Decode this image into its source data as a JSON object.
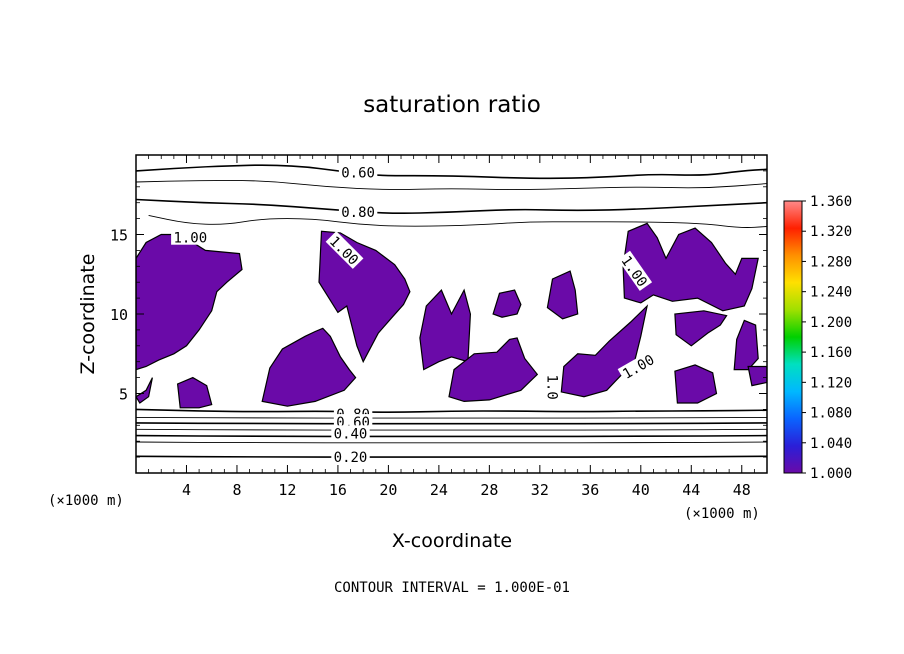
{
  "chart_data": {
    "type": "heatmap",
    "title": "saturation ratio",
    "xlabel": "X-coordinate",
    "ylabel": "Z-coordinate",
    "x_unit": "(×1000 m)",
    "y_unit": "(×1000 m)",
    "xlim": [
      0,
      50
    ],
    "ylim": [
      0,
      20
    ],
    "x_ticks": [
      4,
      8,
      12,
      16,
      20,
      24,
      28,
      32,
      36,
      40,
      44,
      48
    ],
    "y_ticks": [
      5,
      10,
      15
    ],
    "colorbar": {
      "ticks": [
        "1.000",
        "1.040",
        "1.080",
        "1.120",
        "1.160",
        "1.200",
        "1.240",
        "1.280",
        "1.320",
        "1.360"
      ],
      "colors": [
        "#6a0aa8",
        "#2a1fd8",
        "#0a64ff",
        "#00b8ff",
        "#00e0c0",
        "#00d000",
        "#a0e000",
        "#ffe000",
        "#ff9000",
        "#ff2000",
        "#ff8a8a"
      ]
    },
    "contour_labels": [
      {
        "text": "0.60",
        "x": 17.6,
        "z": 18.9
      },
      {
        "text": "0.80",
        "x": 17.6,
        "z": 16.4
      },
      {
        "text": "1.00",
        "x": 4.3,
        "z": 14.8
      },
      {
        "text": "1.00",
        "x": 16.5,
        "z": 14.0,
        "rot": 45
      },
      {
        "text": "1.00",
        "x": 39.5,
        "z": 12.7,
        "rot": 55
      },
      {
        "text": "1.00",
        "x": 39.8,
        "z": 6.7,
        "rot": -30
      },
      {
        "text": "1.0",
        "x": 33.0,
        "z": 5.4,
        "rot": 90
      },
      {
        "text": "0.80",
        "x": 17.2,
        "z": 3.7
      },
      {
        "text": "0.60",
        "x": 17.2,
        "z": 3.2
      },
      {
        "text": "0.40",
        "x": 17.0,
        "z": 2.5
      },
      {
        "text": "0.20",
        "x": 17.0,
        "z": 1.0
      }
    ],
    "saturated_regions": [
      [
        [
          0,
          6.5
        ],
        [
          0,
          13.5
        ],
        [
          0.8,
          14.5
        ],
        [
          2,
          15
        ],
        [
          3.5,
          15
        ],
        [
          5.5,
          14
        ],
        [
          8.2,
          13.8
        ],
        [
          8.4,
          12.8
        ],
        [
          7.2,
          12.0
        ],
        [
          6.4,
          11.4
        ],
        [
          6,
          10.2
        ],
        [
          5,
          9
        ],
        [
          4,
          8
        ],
        [
          3,
          7.5
        ],
        [
          1.8,
          7.1
        ],
        [
          0.8,
          6.7
        ]
      ],
      [
        [
          0,
          4.8
        ],
        [
          0.8,
          5.2
        ],
        [
          1.3,
          6.0
        ],
        [
          1.0,
          4.8
        ],
        [
          0.3,
          4.4
        ]
      ],
      [
        [
          3.5,
          4.1
        ],
        [
          3.3,
          5.6
        ],
        [
          4.5,
          6.0
        ],
        [
          5.6,
          5.5
        ],
        [
          6.0,
          4.3
        ],
        [
          5.0,
          4.1
        ]
      ],
      [
        [
          10.0,
          4.5
        ],
        [
          10.6,
          6.6
        ],
        [
          11.6,
          7.8
        ],
        [
          13.4,
          8.6
        ],
        [
          14.2,
          8.9
        ],
        [
          14.8,
          9.1
        ],
        [
          15.4,
          8.6
        ],
        [
          16.2,
          7.3
        ],
        [
          16.9,
          6.5
        ],
        [
          17.4,
          6.0
        ],
        [
          16.5,
          5.2
        ],
        [
          14.2,
          4.5
        ],
        [
          12.0,
          4.2
        ]
      ],
      [
        [
          14.7,
          15.2
        ],
        [
          14.5,
          12.0
        ],
        [
          16.0,
          10.1
        ],
        [
          16.7,
          10.5
        ],
        [
          17.5,
          8.0
        ],
        [
          18.0,
          7.0
        ],
        [
          19.2,
          8.8
        ],
        [
          20.3,
          9.8
        ],
        [
          21.2,
          10.6
        ],
        [
          21.7,
          11.4
        ],
        [
          21.3,
          12.2
        ],
        [
          20.5,
          13.1
        ],
        [
          19.0,
          14.0
        ],
        [
          17.5,
          14.5
        ],
        [
          16.2,
          15.1
        ]
      ],
      [
        [
          22.8,
          6.5
        ],
        [
          22.5,
          8.5
        ],
        [
          23.0,
          10.5
        ],
        [
          24.2,
          11.5
        ],
        [
          25.0,
          10.0
        ],
        [
          26.0,
          11.5
        ],
        [
          26.5,
          10.0
        ],
        [
          26.3,
          7.0
        ],
        [
          25.0,
          7.3
        ],
        [
          24.0,
          7.0
        ]
      ],
      [
        [
          24.8,
          4.8
        ],
        [
          25.2,
          6.5
        ],
        [
          26.8,
          7.5
        ],
        [
          28.6,
          7.6
        ],
        [
          29.6,
          8.4
        ],
        [
          30.2,
          8.5
        ],
        [
          30.8,
          7.2
        ],
        [
          31.8,
          6.2
        ],
        [
          30.5,
          5.2
        ],
        [
          28.0,
          4.6
        ],
        [
          26.0,
          4.5
        ]
      ],
      [
        [
          28.3,
          10.0
        ],
        [
          28.8,
          11.3
        ],
        [
          30.0,
          11.5
        ],
        [
          30.5,
          10.6
        ],
        [
          30.2,
          10.0
        ],
        [
          29.0,
          9.8
        ]
      ],
      [
        [
          32.6,
          10.4
        ],
        [
          33.0,
          12.2
        ],
        [
          34.4,
          12.7
        ],
        [
          34.8,
          11.5
        ],
        [
          35.0,
          10.0
        ],
        [
          33.8,
          9.7
        ]
      ],
      [
        [
          33.7,
          5.1
        ],
        [
          33.9,
          6.7
        ],
        [
          35.0,
          7.5
        ],
        [
          36.4,
          7.4
        ],
        [
          37.5,
          8.3
        ],
        [
          39.2,
          9.5
        ],
        [
          40.5,
          10.5
        ],
        [
          40.0,
          8.6
        ],
        [
          39.5,
          7.0
        ],
        [
          38.5,
          6.2
        ],
        [
          37.3,
          5.2
        ],
        [
          35.5,
          4.8
        ]
      ],
      [
        [
          38.7,
          11.0
        ],
        [
          38.6,
          13.0
        ],
        [
          39.0,
          15.2
        ],
        [
          40.5,
          15.7
        ],
        [
          41.3,
          14.8
        ],
        [
          42.0,
          13.5
        ],
        [
          43.0,
          15.0
        ],
        [
          44.3,
          15.4
        ],
        [
          45.6,
          14.5
        ],
        [
          46.7,
          13.2
        ],
        [
          47.5,
          12.5
        ],
        [
          48.0,
          13.5
        ],
        [
          49.3,
          13.5
        ],
        [
          48.8,
          11.6
        ],
        [
          48.2,
          10.5
        ],
        [
          46.5,
          10.2
        ],
        [
          44.5,
          11.0
        ],
        [
          42.5,
          10.8
        ],
        [
          41.0,
          11.2
        ],
        [
          40.0,
          10.7
        ]
      ],
      [
        [
          42.7,
          10.0
        ],
        [
          42.8,
          8.7
        ],
        [
          44.0,
          8.0
        ],
        [
          45.3,
          8.8
        ],
        [
          46.3,
          9.3
        ],
        [
          46.8,
          9.9
        ],
        [
          45.0,
          10.2
        ]
      ],
      [
        [
          47.4,
          6.5
        ],
        [
          47.6,
          8.4
        ],
        [
          48.2,
          9.6
        ],
        [
          49.1,
          9.3
        ],
        [
          49.3,
          7.2
        ],
        [
          48.5,
          6.5
        ]
      ],
      [
        [
          42.9,
          4.4
        ],
        [
          42.7,
          6.4
        ],
        [
          44.3,
          6.8
        ],
        [
          45.7,
          6.3
        ],
        [
          46.0,
          5.0
        ],
        [
          44.5,
          4.4
        ]
      ],
      [
        [
          48.5,
          6.7
        ],
        [
          48.8,
          6.7
        ],
        [
          50,
          6.7
        ],
        [
          50,
          5.7
        ],
        [
          48.8,
          5.5
        ]
      ]
    ],
    "contour_lines": [
      {
        "pts": [
          [
            0,
            19.0
          ],
          [
            6,
            19.3
          ],
          [
            12,
            19.4
          ],
          [
            17,
            18.9
          ],
          [
            19,
            18.7
          ],
          [
            25,
            18.7
          ],
          [
            32,
            18.5
          ],
          [
            37,
            18.6
          ],
          [
            41,
            18.8
          ],
          [
            45,
            18.7
          ],
          [
            48,
            19.0
          ],
          [
            50,
            19.1
          ]
        ]
      },
      {
        "pts": [
          [
            0,
            18.3
          ],
          [
            5,
            18.4
          ],
          [
            10,
            18.4
          ],
          [
            15,
            18.0
          ],
          [
            20,
            17.8
          ],
          [
            25,
            17.9
          ],
          [
            30,
            17.8
          ],
          [
            35,
            17.9
          ],
          [
            40,
            18.0
          ],
          [
            45,
            17.9
          ],
          [
            50,
            18.2
          ]
        ]
      },
      {
        "pts": [
          [
            0,
            17.2
          ],
          [
            5,
            17.0
          ],
          [
            10,
            16.9
          ],
          [
            15,
            16.6
          ],
          [
            20,
            16.3
          ],
          [
            25,
            16.4
          ],
          [
            30,
            16.6
          ],
          [
            35,
            16.5
          ],
          [
            40,
            16.6
          ],
          [
            45,
            16.8
          ],
          [
            50,
            17.0
          ]
        ]
      },
      {
        "pts": [
          [
            1,
            16.2
          ],
          [
            4,
            15.7
          ],
          [
            7,
            15.6
          ],
          [
            10,
            16.0
          ],
          [
            14,
            16.0
          ],
          [
            18,
            15.6
          ],
          [
            22,
            15.5
          ],
          [
            27,
            15.6
          ],
          [
            31,
            15.8
          ],
          [
            35,
            15.8
          ],
          [
            40,
            15.8
          ],
          [
            45,
            15.7
          ],
          [
            48,
            15.4
          ],
          [
            50,
            15.5
          ]
        ]
      },
      {
        "pts": [
          [
            0,
            4.0
          ],
          [
            5,
            3.9
          ],
          [
            10,
            3.85
          ],
          [
            15,
            3.9
          ],
          [
            20,
            3.8
          ],
          [
            25,
            3.9
          ],
          [
            30,
            3.9
          ],
          [
            35,
            3.85
          ],
          [
            40,
            3.9
          ],
          [
            45,
            3.9
          ],
          [
            50,
            3.95
          ]
        ]
      },
      {
        "pts": [
          [
            0,
            3.5
          ],
          [
            10,
            3.45
          ],
          [
            20,
            3.45
          ],
          [
            30,
            3.45
          ],
          [
            40,
            3.45
          ],
          [
            50,
            3.5
          ]
        ]
      },
      {
        "pts": [
          [
            0,
            3.15
          ],
          [
            10,
            3.1
          ],
          [
            20,
            3.1
          ],
          [
            30,
            3.1
          ],
          [
            40,
            3.1
          ],
          [
            50,
            3.15
          ]
        ]
      },
      {
        "pts": [
          [
            0,
            2.75
          ],
          [
            10,
            2.7
          ],
          [
            20,
            2.7
          ],
          [
            30,
            2.7
          ],
          [
            40,
            2.7
          ],
          [
            50,
            2.75
          ]
        ]
      },
      {
        "pts": [
          [
            0,
            2.35
          ],
          [
            10,
            2.3
          ],
          [
            20,
            2.3
          ],
          [
            30,
            2.3
          ],
          [
            40,
            2.3
          ],
          [
            50,
            2.35
          ]
        ]
      },
      {
        "pts": [
          [
            0,
            1.95
          ],
          [
            10,
            1.9
          ],
          [
            20,
            1.9
          ],
          [
            30,
            1.9
          ],
          [
            40,
            1.9
          ],
          [
            50,
            1.95
          ]
        ]
      },
      {
        "pts": [
          [
            0,
            1.05
          ],
          [
            10,
            1.0
          ],
          [
            20,
            1.0
          ],
          [
            30,
            1.0
          ],
          [
            40,
            1.0
          ],
          [
            50,
            1.05
          ]
        ]
      }
    ],
    "footer": "CONTOUR INTERVAL = 1.000E-01"
  }
}
